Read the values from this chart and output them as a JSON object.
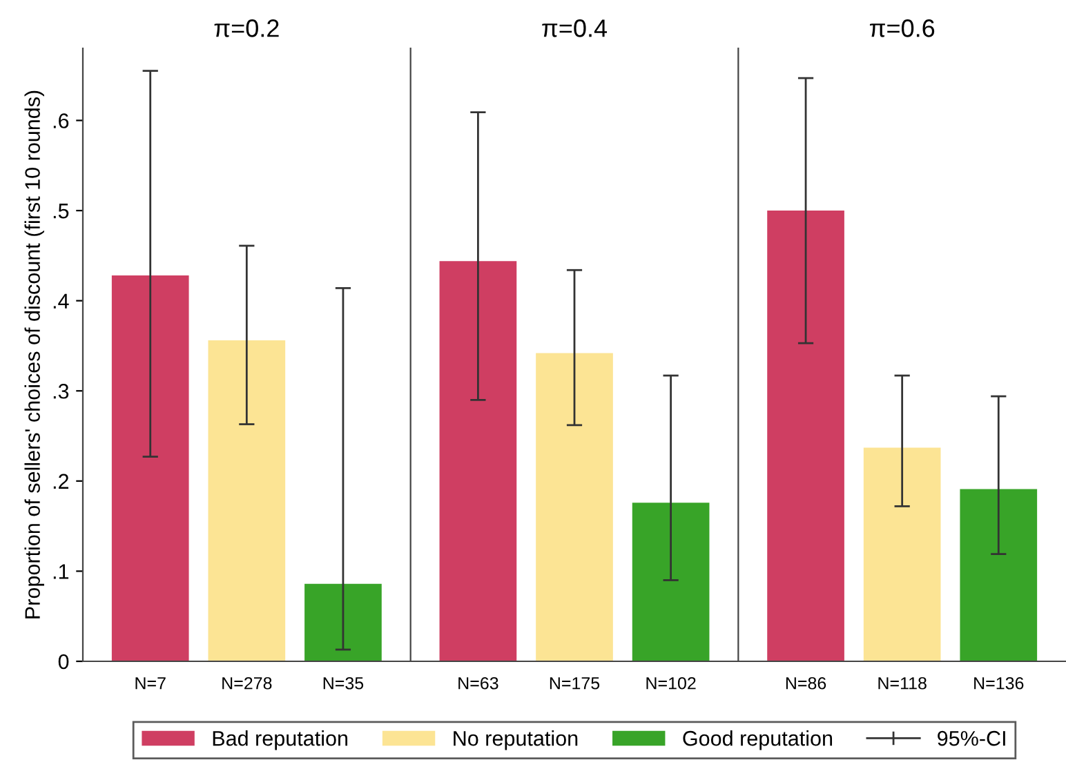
{
  "chart_data": [
    {
      "type": "bar",
      "title": "π=0.2",
      "ylabel": "Proportion of sellers' choices of discount (first 10 rounds)",
      "categories": [
        "N=7",
        "N=278",
        "N=35"
      ],
      "series": [
        {
          "name": "Bad reputation",
          "color": "#cf3e62",
          "values": [
            0.428,
            null,
            null
          ],
          "errors": [
            [
              0.227,
              0.655
            ],
            null,
            null
          ]
        },
        {
          "name": "No reputation",
          "color": "#fce494",
          "values": [
            null,
            0.356,
            null
          ],
          "errors": [
            null,
            [
              0.263,
              0.461
            ],
            null
          ]
        },
        {
          "name": "Good reputation",
          "color": "#38a428",
          "values": [
            null,
            null,
            0.086
          ],
          "errors": [
            null,
            null,
            [
              0.013,
              0.414
            ]
          ]
        }
      ],
      "ylim": [
        0,
        0.68
      ],
      "yticks": [
        0,
        {
          "value": 0.1,
          "label": ".1"
        },
        {
          "value": 0.2,
          "label": ".2"
        },
        {
          "value": 0.3,
          "label": ".3"
        },
        {
          "value": 0.4,
          "label": ".4"
        },
        {
          "value": 0.5,
          "label": ".5"
        },
        {
          "value": 0.6,
          "label": ".6"
        }
      ],
      "legend": "bottom",
      "annotations": [
        "95%-CI"
      ],
      "grid": false
    },
    {
      "type": "bar",
      "title": "π=0.4",
      "categories": [
        "N=63",
        "N=175",
        "N=102"
      ],
      "series": [
        {
          "color": "#cf3e62",
          "values": [
            0.444,
            null,
            null
          ],
          "errors": [
            [
              0.29,
              0.609
            ],
            null,
            null
          ]
        },
        {
          "color": "#fce494",
          "values": [
            null,
            0.342,
            null
          ],
          "errors": [
            null,
            [
              0.262,
              0.434
            ],
            null
          ]
        },
        {
          "color": "#38a428",
          "values": [
            null,
            null,
            0.176
          ],
          "errors": [
            null,
            null,
            [
              0.09,
              0.317
            ]
          ]
        }
      ],
      "ylim": [
        0,
        0.68
      ],
      "tick_labels": "x",
      "grid": false
    },
    {
      "type": "bar",
      "title": "π=0.6",
      "categories": [
        "N=86",
        "N=118",
        "N=136"
      ],
      "series": [
        {
          "color": "#cf3e62",
          "values": [
            0.5,
            null,
            null
          ],
          "errors": [
            [
              0.353,
              0.647
            ],
            null,
            null
          ]
        },
        {
          "color": "#fce494",
          "values": [
            null,
            0.237,
            null
          ],
          "errors": [
            null,
            [
              0.172,
              0.317
            ],
            null
          ]
        },
        {
          "color": "#38a428",
          "values": [
            null,
            null,
            0.191
          ],
          "errors": [
            null,
            null,
            [
              0.119,
              0.294
            ]
          ]
        }
      ],
      "ylim": [
        0,
        0.68
      ],
      "tick_labels": "x",
      "grid": false
    }
  ]
}
